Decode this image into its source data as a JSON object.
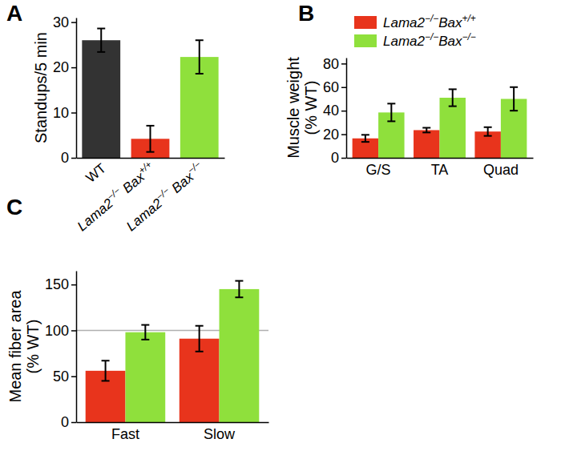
{
  "chart_data": [
    {
      "type": "bar",
      "panel": "A",
      "categories": [
        "WT",
        "Lama2−/− Bax+/+",
        "Lama2−/− Bax−/−"
      ],
      "values": [
        26,
        4.2,
        22.3
      ],
      "errors": [
        2.6,
        2.9,
        3.7
      ],
      "colors": [
        "#333333",
        "#e8341c",
        "#8fe03c"
      ],
      "y_label": "Standups/5 min",
      "ylim": [
        0,
        31
      ],
      "yticks": [
        0,
        10,
        20,
        30
      ]
    },
    {
      "type": "bar",
      "panel": "B",
      "categories": [
        "G/S",
        "TA",
        "Quad"
      ],
      "series": [
        {
          "name": "Lama2−/−Bax+/+",
          "color": "#e8341c",
          "values": [
            16.5,
            23.5,
            22.3
          ],
          "errors": [
            3,
            2,
            3.7
          ]
        },
        {
          "name": "Lama2−/−Bax−/−",
          "color": "#8fe03c",
          "values": [
            38.5,
            51,
            50
          ],
          "errors": [
            7.5,
            7.2,
            10
          ]
        }
      ],
      "y_label": [
        "Muscle weight",
        "(% WT)"
      ],
      "ylim": [
        0,
        85
      ],
      "yticks": [
        0,
        20,
        40,
        60,
        80
      ],
      "legend": "upper left"
    },
    {
      "type": "bar",
      "panel": "C",
      "categories": [
        "Fast",
        "Slow"
      ],
      "series": [
        {
          "color": "#e8341c",
          "values": [
            56,
            91
          ],
          "errors": [
            11,
            14
          ]
        },
        {
          "color": "#8fe03c",
          "values": [
            98,
            145
          ],
          "errors": [
            8,
            9
          ]
        }
      ],
      "y_label": [
        "Mean fiber area",
        "(% WT)"
      ],
      "ylim": [
        0,
        165
      ],
      "yticks": [
        0,
        50,
        100,
        150
      ],
      "reference_line": 100
    }
  ]
}
